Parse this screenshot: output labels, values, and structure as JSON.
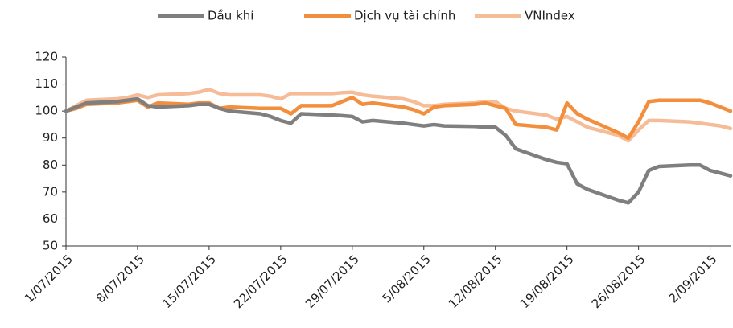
{
  "chart_data": {
    "type": "line",
    "x": [
      "1/07/2015",
      "2/07/2015",
      "3/07/2015",
      "6/07/2015",
      "7/07/2015",
      "8/07/2015",
      "9/07/2015",
      "10/07/2015",
      "13/07/2015",
      "14/07/2015",
      "15/07/2015",
      "16/07/2015",
      "17/07/2015",
      "20/07/2015",
      "21/07/2015",
      "22/07/2015",
      "23/07/2015",
      "24/07/2015",
      "27/07/2015",
      "28/07/2015",
      "29/07/2015",
      "30/07/2015",
      "31/07/2015",
      "3/08/2015",
      "4/08/2015",
      "5/08/2015",
      "6/08/2015",
      "7/08/2015",
      "10/08/2015",
      "11/08/2015",
      "12/08/2015",
      "13/08/2015",
      "14/08/2015",
      "17/08/2015",
      "18/08/2015",
      "19/08/2015",
      "20/08/2015",
      "21/08/2015",
      "24/08/2015",
      "25/08/2015",
      "26/08/2015",
      "27/08/2015",
      "28/08/2015",
      "31/08/2015",
      "1/09/2015",
      "2/09/2015",
      "3/09/2015",
      "4/09/2015"
    ],
    "series": [
      {
        "name": "Dầu khí",
        "color": "#7f7f7f",
        "values": [
          100,
          101.5,
          103,
          103.5,
          104,
          104.5,
          102,
          101.5,
          102,
          102.5,
          102.5,
          101,
          100,
          99,
          98,
          96.5,
          95.5,
          99,
          98.5,
          98.3,
          98,
          96,
          96.5,
          95.5,
          95,
          94.5,
          95,
          94.5,
          94.3,
          94,
          94,
          91,
          86,
          82,
          81,
          80.5,
          73,
          71,
          67,
          66,
          70,
          78,
          79.5,
          80,
          80,
          78,
          77,
          76
        ]
      },
      {
        "name": "Dịch vụ tài chính",
        "color": "#f28e3c",
        "values": [
          100,
          101,
          102.5,
          103,
          103.5,
          104,
          101.5,
          103,
          102.5,
          103,
          103,
          101,
          101.5,
          101,
          101,
          101,
          99,
          102,
          102,
          103.5,
          105,
          102.5,
          103,
          101.5,
          100.5,
          99,
          101.5,
          102,
          102.5,
          103,
          102,
          101,
          95,
          94,
          93,
          103,
          99,
          97,
          92,
          90,
          96,
          103.5,
          104,
          104,
          104,
          103,
          101.5,
          100
        ]
      },
      {
        "name": "VNIndex",
        "color": "#f6bc98",
        "values": [
          100,
          102,
          104,
          104.5,
          105,
          106,
          105,
          106,
          106.5,
          107,
          108,
          106.5,
          106,
          106,
          105.5,
          104.5,
          106.5,
          106.5,
          106.5,
          106.8,
          107,
          106,
          105.5,
          104.5,
          103.5,
          102,
          102,
          102.5,
          103,
          103.5,
          103.5,
          101,
          100,
          98.5,
          97,
          98,
          96,
          94,
          91,
          89,
          93,
          96.5,
          96.5,
          96,
          95.5,
          95,
          94.5,
          93.5
        ]
      }
    ],
    "xlim": [
      "1/07/2015",
      "4/09/2015"
    ],
    "xticks": [
      "1/07/2015",
      "8/07/2015",
      "15/07/2015",
      "22/07/2015",
      "29/07/2015",
      "5/08/2015",
      "12/08/2015",
      "19/08/2015",
      "26/08/2015",
      "2/09/2015"
    ],
    "ylim": [
      50,
      120
    ],
    "yticks": [
      50,
      60,
      70,
      80,
      90,
      100,
      110,
      120
    ],
    "legend": "top"
  }
}
